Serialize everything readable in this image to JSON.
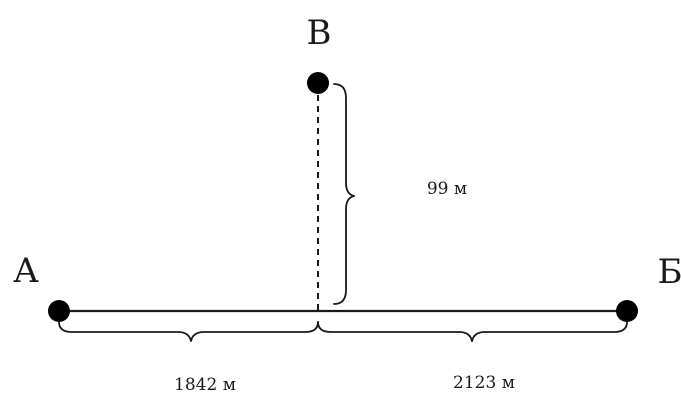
{
  "points": {
    "a": "А",
    "b": "Б",
    "v": "В"
  },
  "distances": {
    "a_to_foot": "1842 м",
    "foot_to_b": "2123 м",
    "v_to_line": "99 м"
  },
  "colors": {
    "ink": "#1a1a1a",
    "dot": "#000000",
    "background": "#ffffff"
  }
}
